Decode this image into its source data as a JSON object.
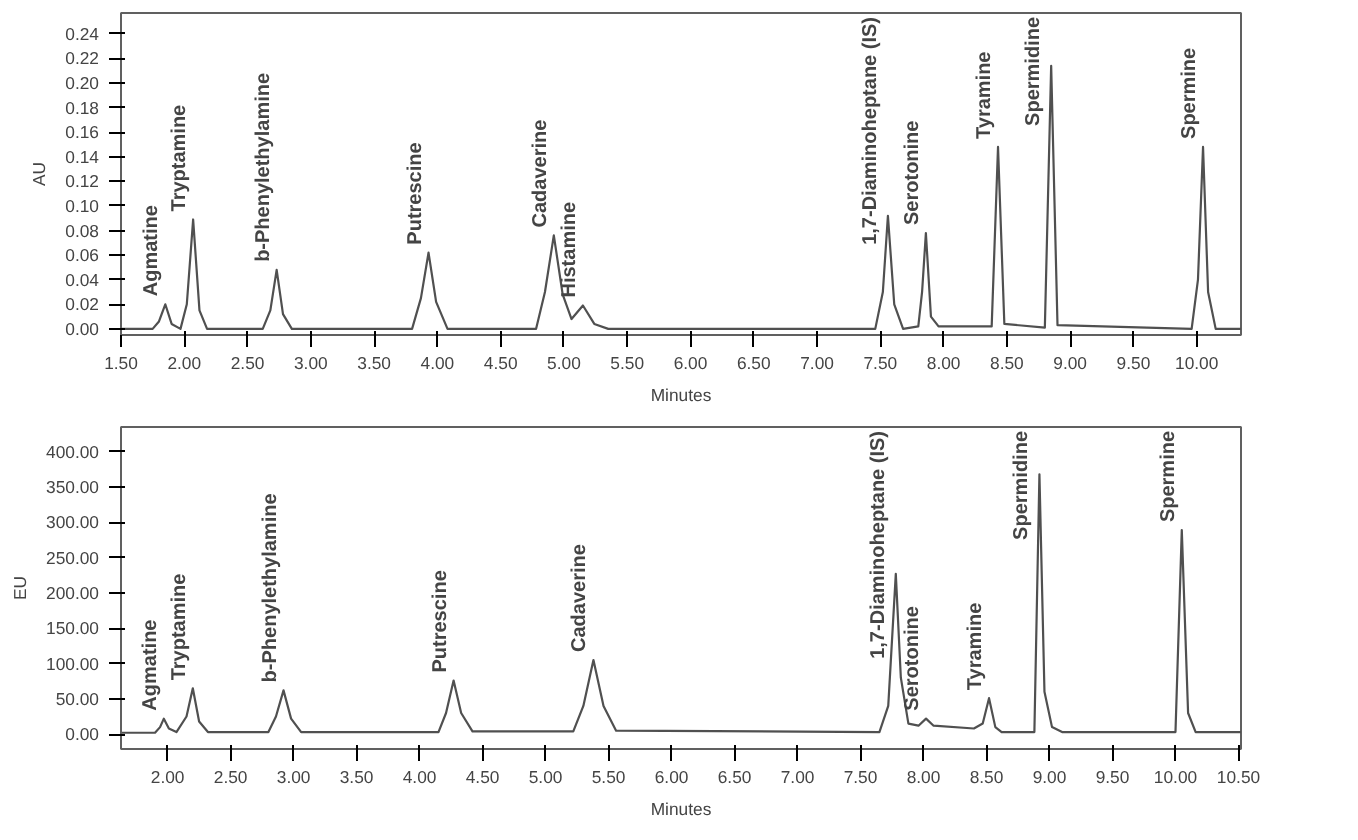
{
  "chart_data": [
    {
      "type": "line",
      "xlabel": "Minutes",
      "ylabel": "AU",
      "grid": false,
      "xlim": [
        1.5,
        10.35
      ],
      "ylim": [
        -0.005,
        0.257
      ],
      "xticks": [
        {
          "value": 1.5,
          "label": "1.50"
        },
        {
          "value": 2.0,
          "label": "2.00"
        },
        {
          "value": 2.5,
          "label": "2.50"
        },
        {
          "value": 3.0,
          "label": "3.00"
        },
        {
          "value": 3.5,
          "label": "3.50"
        },
        {
          "value": 4.0,
          "label": "4.00"
        },
        {
          "value": 4.5,
          "label": "4.50"
        },
        {
          "value": 5.0,
          "label": "5.00"
        },
        {
          "value": 5.5,
          "label": "5.50"
        },
        {
          "value": 6.0,
          "label": "6.00"
        },
        {
          "value": 6.5,
          "label": "6.50"
        },
        {
          "value": 7.0,
          "label": "7.00"
        },
        {
          "value": 7.5,
          "label": "7.50"
        },
        {
          "value": 8.0,
          "label": "8.00"
        },
        {
          "value": 8.5,
          "label": "8.50"
        },
        {
          "value": 9.0,
          "label": "9.00"
        },
        {
          "value": 9.5,
          "label": "9.50"
        },
        {
          "value": 10.0,
          "label": "10.00"
        }
      ],
      "yticks": [
        {
          "value": 0.0,
          "label": "0.00"
        },
        {
          "value": 0.02,
          "label": "0.02"
        },
        {
          "value": 0.04,
          "label": "0.04"
        },
        {
          "value": 0.06,
          "label": "0.06"
        },
        {
          "value": 0.08,
          "label": "0.08"
        },
        {
          "value": 0.1,
          "label": "0.10"
        },
        {
          "value": 0.12,
          "label": "0.12"
        },
        {
          "value": 0.14,
          "label": "0.14"
        },
        {
          "value": 0.16,
          "label": "0.16"
        },
        {
          "value": 0.18,
          "label": "0.18"
        },
        {
          "value": 0.2,
          "label": "0.20"
        },
        {
          "value": 0.22,
          "label": "0.22"
        },
        {
          "value": 0.24,
          "label": "0.24"
        }
      ],
      "series": [
        {
          "color": "#505050",
          "x": [
            1.5,
            1.75,
            1.8,
            1.85,
            1.9,
            1.97,
            2.02,
            2.07,
            2.12,
            2.18,
            2.62,
            2.68,
            2.73,
            2.78,
            2.85,
            3.8,
            3.87,
            3.93,
            3.99,
            4.08,
            4.78,
            4.85,
            4.92,
            4.99,
            5.06,
            5.15,
            5.24,
            5.35,
            7.46,
            7.52,
            7.56,
            7.61,
            7.68,
            7.8,
            7.83,
            7.86,
            7.9,
            7.96,
            8.38,
            8.43,
            8.48,
            8.8,
            8.85,
            8.9,
            9.96,
            10.01,
            10.05,
            10.09,
            10.15,
            10.35
          ],
          "values": [
            0.0,
            0.0,
            0.006,
            0.02,
            0.004,
            0.0,
            0.02,
            0.089,
            0.015,
            0.0,
            0.0,
            0.015,
            0.048,
            0.012,
            0.0,
            0.0,
            0.025,
            0.062,
            0.022,
            0.0,
            0.0,
            0.03,
            0.076,
            0.028,
            0.008,
            0.019,
            0.004,
            0.0,
            0.0,
            0.03,
            0.092,
            0.02,
            0.0,
            0.002,
            0.03,
            0.078,
            0.01,
            0.002,
            0.002,
            0.148,
            0.004,
            0.001,
            0.214,
            0.003,
            0.0,
            0.04,
            0.148,
            0.03,
            0.0,
            0.0
          ]
        }
      ],
      "annotations": [
        {
          "text": "Agmatine",
          "x": 1.85,
          "y": 0.02
        },
        {
          "text": "Tryptamine",
          "x": 2.07,
          "y": 0.089
        },
        {
          "text": "b-Phenylethylamine",
          "x": 2.73,
          "y": 0.048
        },
        {
          "text": "Putrescine",
          "x": 3.93,
          "y": 0.062
        },
        {
          "text": "Cadaverine",
          "x": 4.92,
          "y": 0.076
        },
        {
          "text": "Histamine",
          "x": 5.15,
          "y": 0.019
        },
        {
          "text": "1,7-Diaminoheptane (IS)",
          "x": 7.56,
          "y": 0.092
        },
        {
          "text": "Serotonine",
          "x": 7.86,
          "y": 0.078
        },
        {
          "text": "Tyramine",
          "x": 8.43,
          "y": 0.148
        },
        {
          "text": "Spermidine",
          "x": 8.85,
          "y": 0.214
        },
        {
          "text": "Spermine",
          "x": 10.05,
          "y": 0.148
        }
      ]
    },
    {
      "type": "line",
      "xlabel": "Minutes",
      "ylabel": "EU",
      "grid": false,
      "xlim": [
        1.63,
        10.52
      ],
      "ylim": [
        -21,
        435
      ],
      "xticks": [
        {
          "value": 2.0,
          "label": "2.00"
        },
        {
          "value": 2.5,
          "label": "2.50"
        },
        {
          "value": 3.0,
          "label": "3.00"
        },
        {
          "value": 3.5,
          "label": "3.50"
        },
        {
          "value": 4.0,
          "label": "4.00"
        },
        {
          "value": 4.5,
          "label": "4.50"
        },
        {
          "value": 5.0,
          "label": "5.00"
        },
        {
          "value": 5.5,
          "label": "5.50"
        },
        {
          "value": 6.0,
          "label": "6.00"
        },
        {
          "value": 6.5,
          "label": "6.50"
        },
        {
          "value": 7.0,
          "label": "7.00"
        },
        {
          "value": 7.5,
          "label": "7.50"
        },
        {
          "value": 8.0,
          "label": "8.00"
        },
        {
          "value": 8.5,
          "label": "8.50"
        },
        {
          "value": 9.0,
          "label": "9.00"
        },
        {
          "value": 9.5,
          "label": "9.50"
        },
        {
          "value": 10.0,
          "label": "10.00"
        },
        {
          "value": 10.5,
          "label": "10.50"
        }
      ],
      "yticks": [
        {
          "value": 0,
          "label": "0.00"
        },
        {
          "value": 50,
          "label": "50.00"
        },
        {
          "value": 100,
          "label": "100.00"
        },
        {
          "value": 150,
          "label": "150.00"
        },
        {
          "value": 200,
          "label": "200.00"
        },
        {
          "value": 250,
          "label": "250.00"
        },
        {
          "value": 300,
          "label": "300.00"
        },
        {
          "value": 350,
          "label": "350.00"
        },
        {
          "value": 400,
          "label": "400.00"
        }
      ],
      "series": [
        {
          "color": "#505050",
          "x": [
            1.63,
            1.9,
            1.94,
            1.97,
            2.01,
            2.07,
            2.15,
            2.2,
            2.25,
            2.32,
            2.8,
            2.86,
            2.92,
            2.98,
            3.06,
            4.15,
            4.21,
            4.27,
            4.33,
            4.42,
            5.22,
            5.3,
            5.38,
            5.46,
            5.56,
            7.65,
            7.72,
            7.78,
            7.82,
            7.88,
            7.96,
            8.02,
            8.08,
            8.4,
            8.47,
            8.52,
            8.57,
            8.62,
            8.88,
            8.92,
            8.96,
            9.02,
            9.1,
            10.0,
            10.05,
            10.1,
            10.16,
            10.52
          ],
          "values": [
            2,
            2,
            10,
            22,
            8,
            3,
            25,
            65,
            18,
            3,
            3,
            25,
            62,
            22,
            3,
            3,
            30,
            76,
            30,
            4,
            4,
            40,
            105,
            40,
            5,
            3,
            40,
            227,
            80,
            15,
            12,
            22,
            12,
            8,
            15,
            51,
            10,
            3,
            3,
            368,
            60,
            10,
            3,
            3,
            289,
            30,
            3,
            3
          ]
        }
      ],
      "annotations": [
        {
          "text": "Agmatine",
          "x": 1.97,
          "y": 22
        },
        {
          "text": "Tryptamine",
          "x": 2.2,
          "y": 65
        },
        {
          "text": "b-Phenylethylamine",
          "x": 2.92,
          "y": 62
        },
        {
          "text": "Putrescine",
          "x": 4.27,
          "y": 76
        },
        {
          "text": "Cadaverine",
          "x": 5.38,
          "y": 105
        },
        {
          "text": "1,7-Diaminoheptane (IS)",
          "x": 7.78,
          "y": 227
        },
        {
          "text": "Serotonine",
          "x": 8.02,
          "y": 22
        },
        {
          "text": "Tyramine",
          "x": 8.52,
          "y": 51
        },
        {
          "text": "Spermidine",
          "x": 8.92,
          "y": 368
        },
        {
          "text": "Spermine",
          "x": 10.05,
          "y": 289
        }
      ]
    }
  ]
}
